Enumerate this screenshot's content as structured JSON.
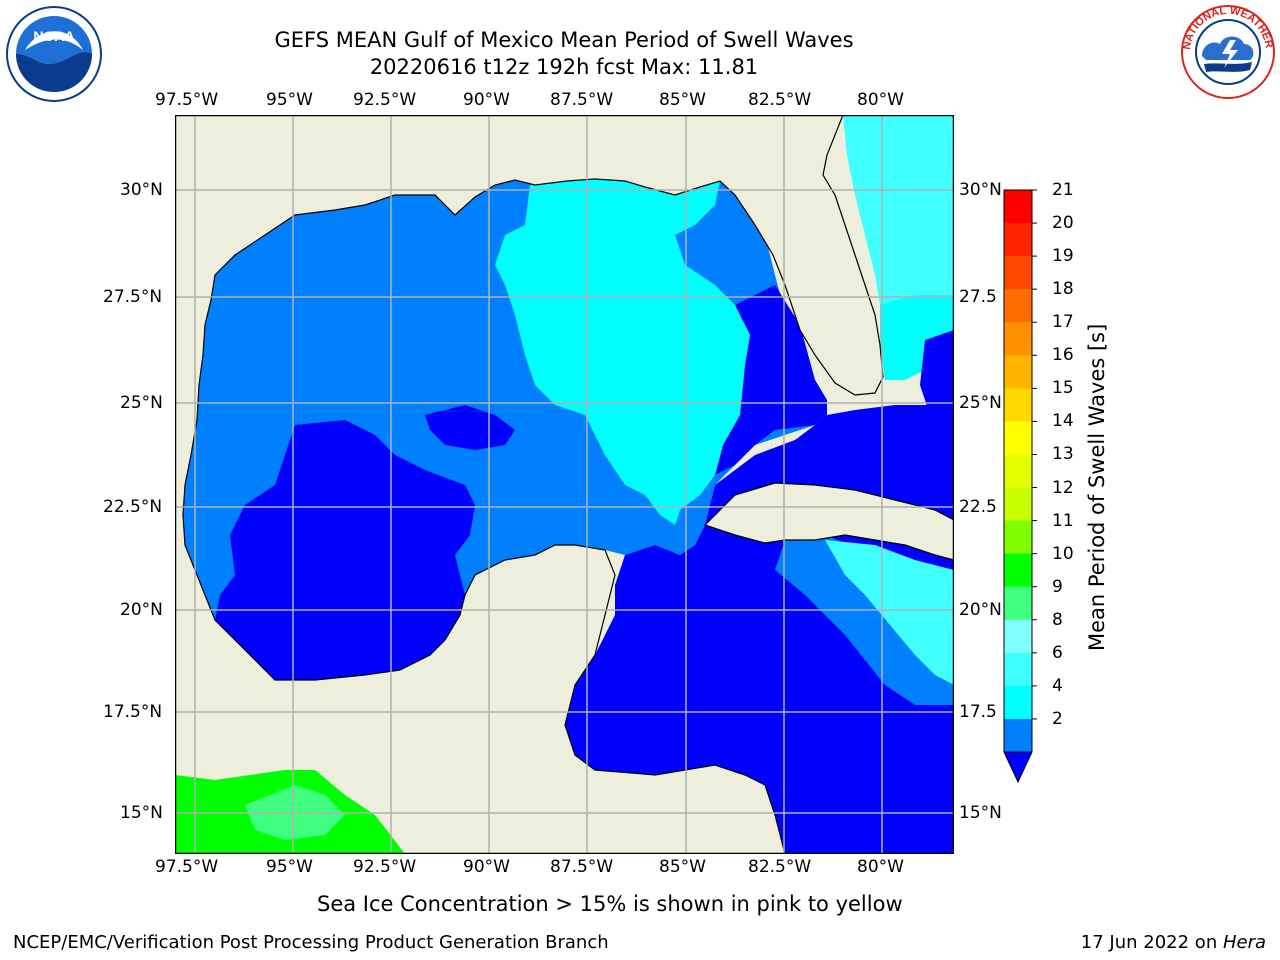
{
  "header": {
    "title_line1": "GEFS MEAN Gulf of Mexico Mean Period of Swell Waves",
    "title_line2": "20220616 t12z 192h fcst   Max: 11.81"
  },
  "logos": {
    "left": {
      "name": "noaa-logo",
      "text": "NOAA"
    },
    "right": {
      "name": "nws-logo",
      "text": "NATIONAL WEATHER SERVICE"
    }
  },
  "map": {
    "lon_ticks": [
      "97.5°W",
      "95°W",
      "92.5°W",
      "90°W",
      "87.5°W",
      "85°W",
      "82.5°W",
      "80°W"
    ],
    "lat_ticks_left": [
      "30°N",
      "27.5°N",
      "25°N",
      "22.5°N",
      "20°N",
      "17.5°N",
      "15°N"
    ],
    "lat_ticks_right": [
      "30°N",
      "27.5",
      "25°N",
      "22.5",
      "20°N",
      "17.5",
      "15°N"
    ],
    "colors": {
      "land": "#eeeedc",
      "ocean_low": "#0000ff",
      "ocean_mid": "#0080ff",
      "ocean_high": "#00ffff",
      "ocean_8": "#40ffff",
      "green": "#00ff00",
      "grid": "#b0b0b0"
    }
  },
  "colorbar": {
    "title": "Mean Period of Swell Waves [s]",
    "labels": [
      "21",
      "20",
      "19",
      "18",
      "17",
      "16",
      "15",
      "14",
      "13",
      "12",
      "11",
      "10",
      "9",
      "8",
      "6",
      "4",
      "2"
    ],
    "colors": [
      "#ff0000",
      "#ff2400",
      "#ff4800",
      "#ff6c00",
      "#ff9000",
      "#ffb400",
      "#ffd800",
      "#ffff00",
      "#e4ff00",
      "#c8ff00",
      "#80ff00",
      "#00ff00",
      "#40ff80",
      "#80ffff",
      "#40ffff",
      "#00ffff",
      "#0080ff"
    ],
    "extend_color": "#0000ff"
  },
  "footer": {
    "note": "Sea Ice Concentration > 15% is shown in pink to yellow",
    "left": "NCEP/EMC/Verification Post Processing Product Generation Branch",
    "right_date": "17 Jun 2022 on ",
    "right_host": "Hera"
  }
}
